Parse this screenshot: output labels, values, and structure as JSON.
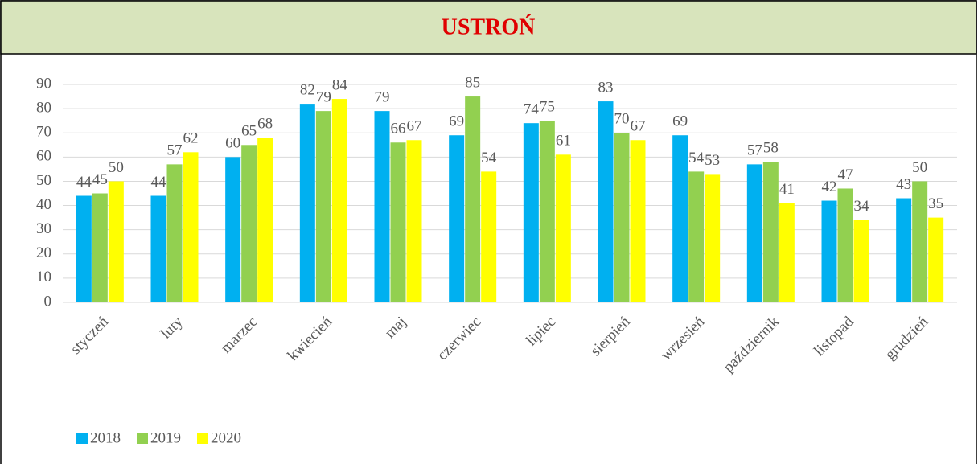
{
  "chart_data": {
    "type": "bar",
    "title": "USTROŃ",
    "categories": [
      "styczeń",
      "luty",
      "marzec",
      "kwiecień",
      "maj",
      "czerwiec",
      "lipiec",
      "sierpień",
      "wrzesień",
      "październik",
      "listopad",
      "grudzień"
    ],
    "series": [
      {
        "name": "2018",
        "color": "#00b0f0",
        "values": [
          44,
          44,
          60,
          82,
          79,
          69,
          74,
          83,
          69,
          57,
          42,
          43
        ]
      },
      {
        "name": "2019",
        "color": "#92d050",
        "values": [
          45,
          57,
          65,
          79,
          66,
          85,
          75,
          70,
          54,
          58,
          47,
          50
        ]
      },
      {
        "name": "2020",
        "color": "#ffff00",
        "values": [
          50,
          62,
          68,
          84,
          67,
          54,
          61,
          67,
          53,
          41,
          34,
          35
        ]
      }
    ],
    "ylim": [
      0,
      90
    ],
    "yticks": [
      0,
      10,
      20,
      30,
      40,
      50,
      60,
      70,
      80,
      90
    ],
    "grid": true,
    "legend": "bottom-left"
  }
}
